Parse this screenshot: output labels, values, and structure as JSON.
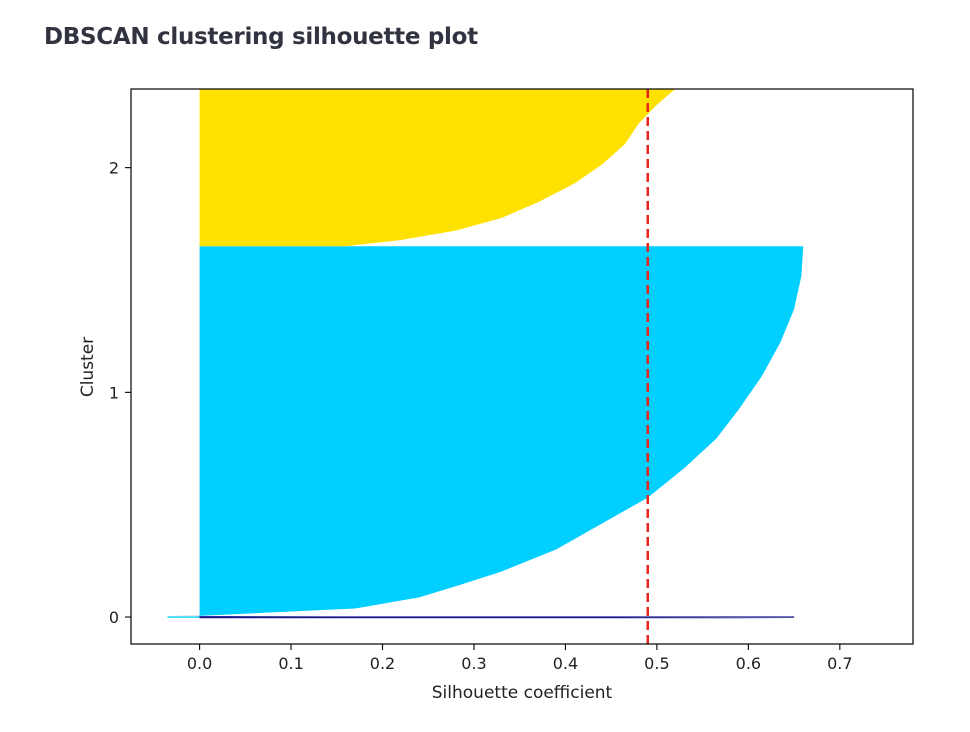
{
  "page": {
    "title": "DBSCAN clustering silhouette plot"
  },
  "chart_data": {
    "type": "silhouette",
    "title": "",
    "xlabel": "Silhouette coefficient",
    "ylabel": "Cluster",
    "xlim": [
      -0.075,
      0.78
    ],
    "ylim": [
      -0.12,
      2.35
    ],
    "xticks": [
      0.0,
      0.1,
      0.2,
      0.3,
      0.4,
      0.5,
      0.6,
      0.7
    ],
    "xtick_labels": [
      "0.0",
      "0.1",
      "0.2",
      "0.3",
      "0.4",
      "0.5",
      "0.6",
      "0.7"
    ],
    "yticks": [
      0,
      1,
      2
    ],
    "ytick_labels": [
      "0",
      "1",
      "2"
    ],
    "average_silhouette": 0.49,
    "average_line_color": "#e8251d",
    "grid": false,
    "clusters": [
      {
        "label": "0",
        "color": "#1a1a8c",
        "band": [
          -0.005,
          0.005
        ],
        "profile": [
          [
            0.0,
            0.65
          ],
          [
            1.0,
            -0.035
          ]
        ]
      },
      {
        "label": "1",
        "color": "#00cfff",
        "band": [
          0.005,
          1.65
        ],
        "profile": [
          [
            0.0,
            0.0
          ],
          [
            0.02,
            0.17
          ],
          [
            0.05,
            0.24
          ],
          [
            0.08,
            0.28
          ],
          [
            0.12,
            0.33
          ],
          [
            0.18,
            0.39
          ],
          [
            0.25,
            0.44
          ],
          [
            0.32,
            0.49
          ],
          [
            0.4,
            0.53
          ],
          [
            0.48,
            0.565
          ],
          [
            0.56,
            0.59
          ],
          [
            0.65,
            0.615
          ],
          [
            0.74,
            0.635
          ],
          [
            0.83,
            0.65
          ],
          [
            0.92,
            0.658
          ],
          [
            1.0,
            0.66
          ]
        ]
      },
      {
        "label": "2",
        "color": "#ffe100",
        "band": [
          1.65,
          2.35
        ],
        "profile": [
          [
            0.0,
            0.16
          ],
          [
            0.04,
            0.22
          ],
          [
            0.1,
            0.28
          ],
          [
            0.18,
            0.33
          ],
          [
            0.28,
            0.37
          ],
          [
            0.4,
            0.41
          ],
          [
            0.52,
            0.44
          ],
          [
            0.65,
            0.465
          ],
          [
            0.78,
            0.48
          ],
          [
            0.9,
            0.5
          ],
          [
            1.0,
            0.52
          ]
        ]
      }
    ]
  }
}
